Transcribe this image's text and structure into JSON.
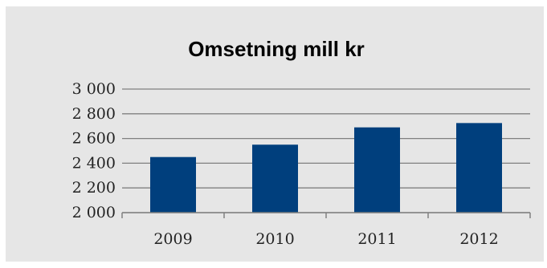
{
  "chart_data": {
    "type": "bar",
    "title": "Omsetning mill kr",
    "xlabel": "",
    "ylabel": "",
    "categories": [
      "2009",
      "2010",
      "2011",
      "2012"
    ],
    "values": [
      2450,
      2550,
      2690,
      2725
    ],
    "ylim": [
      2000,
      3000
    ],
    "yticks": [
      2000,
      2200,
      2400,
      2600,
      2800,
      3000
    ],
    "ytick_labels": [
      "2 000",
      "2 200",
      "2 400",
      "2 600",
      "2 800",
      "3 000"
    ],
    "grid": true,
    "legend": "none",
    "colors": {
      "bar": "#003f7d",
      "background": "#e6e6e6",
      "axis": "#808080"
    }
  }
}
